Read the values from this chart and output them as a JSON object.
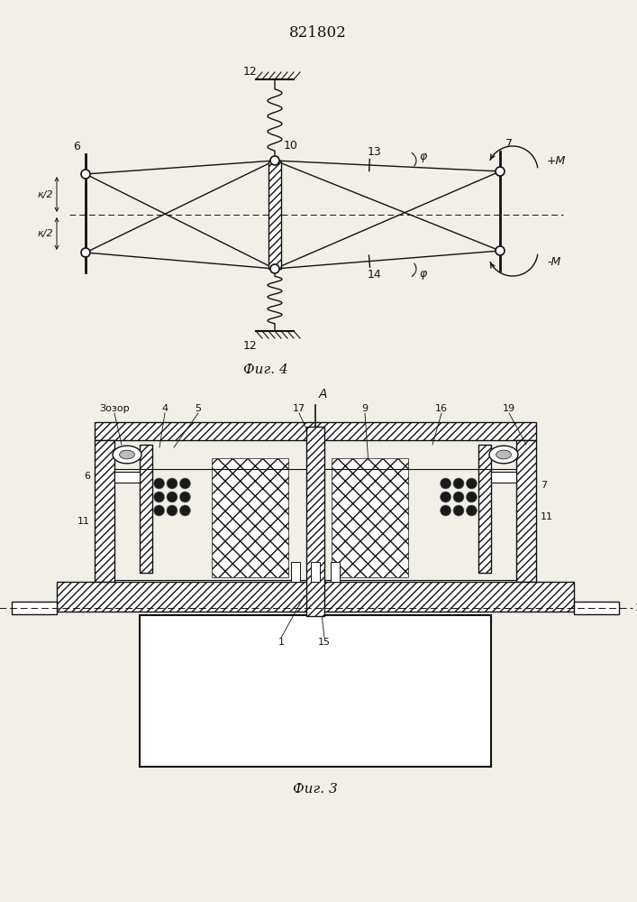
{
  "title": "821802",
  "bg_color": "#f2efe9",
  "line_color": "#111111",
  "fig4_label": "Фиг. 4",
  "fig3_label": "Фиг. 3"
}
